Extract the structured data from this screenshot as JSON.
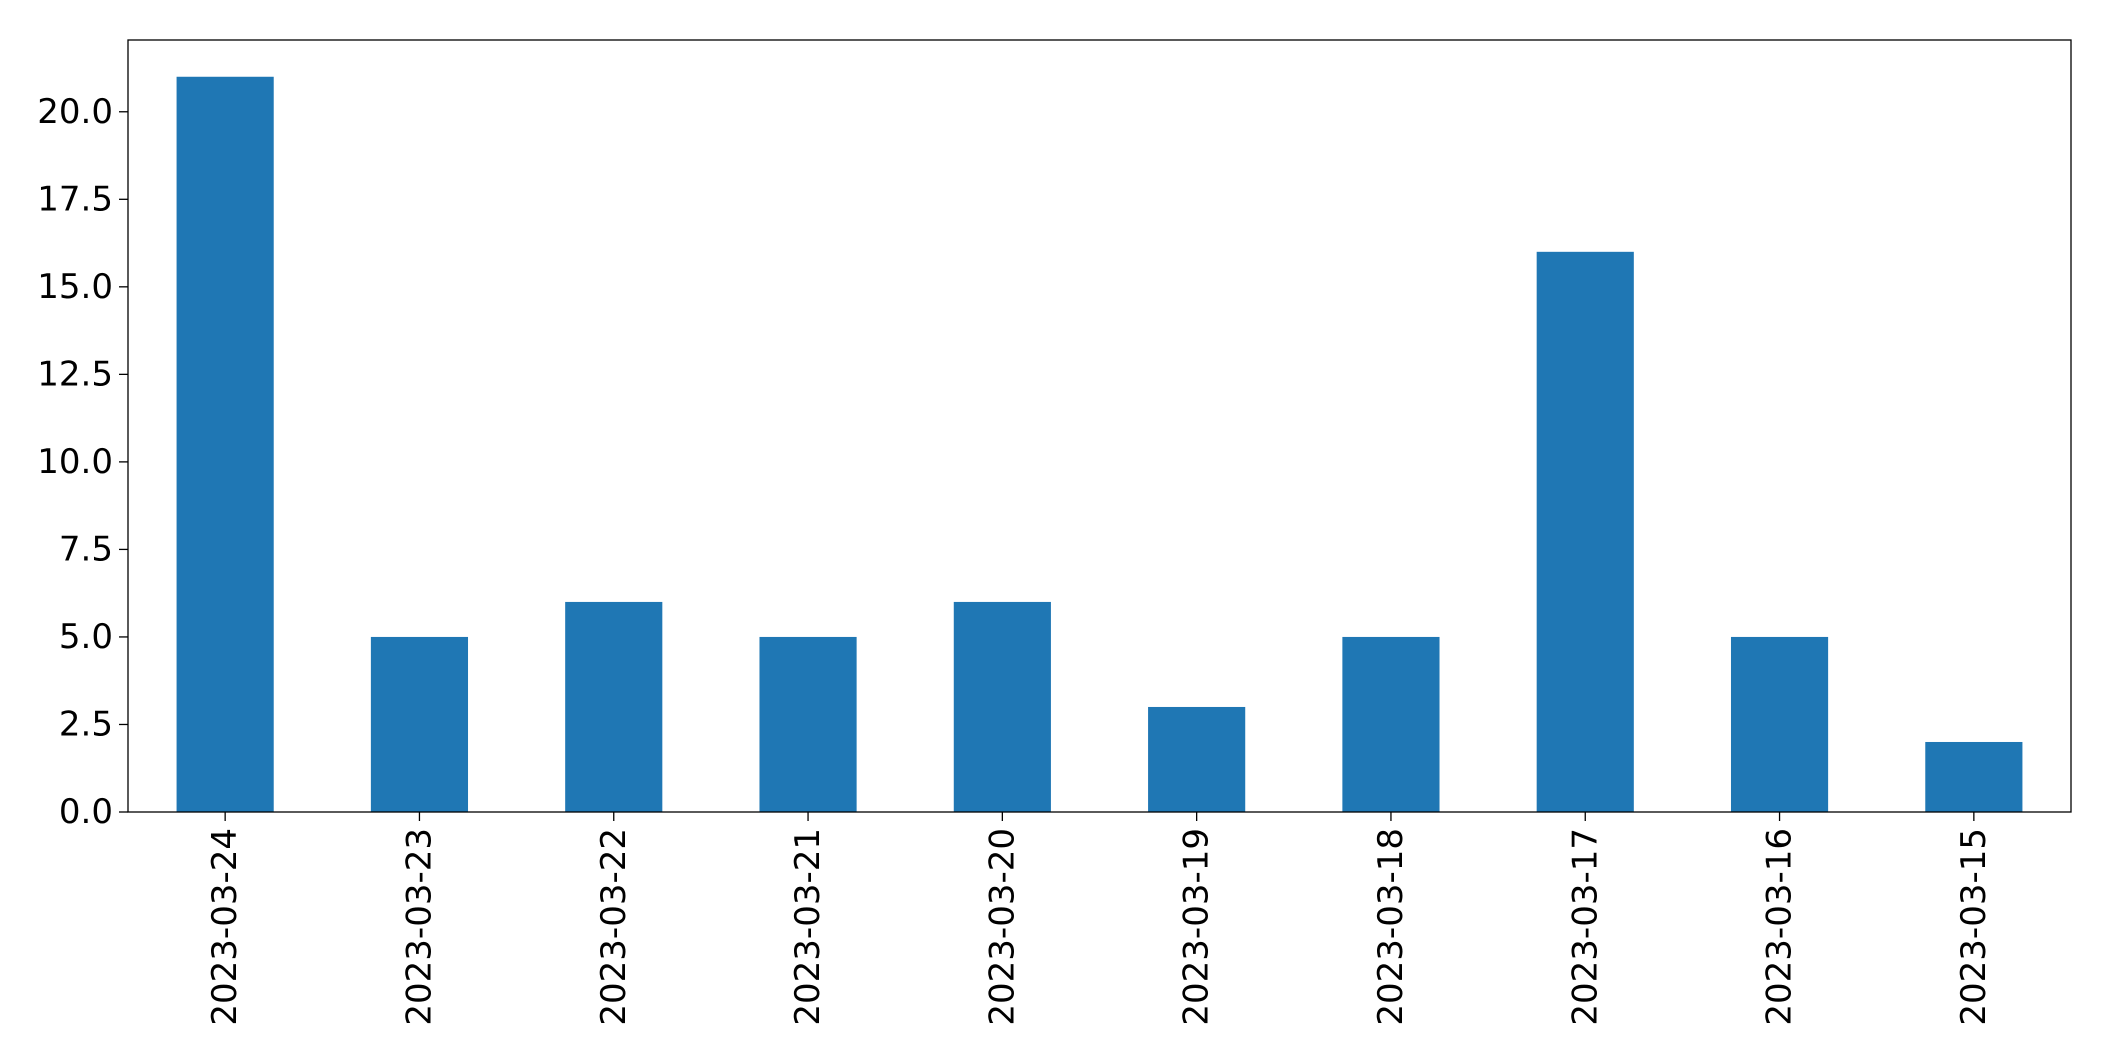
{
  "chart_data": {
    "type": "bar",
    "title": "",
    "xlabel": "",
    "ylabel": "",
    "categories": [
      "2023-03-24",
      "2023-03-23",
      "2023-03-22",
      "2023-03-21",
      "2023-03-20",
      "2023-03-19",
      "2023-03-18",
      "2023-03-17",
      "2023-03-16",
      "2023-03-15"
    ],
    "values": [
      21,
      5,
      6,
      5,
      6,
      3,
      5,
      16,
      5,
      2
    ],
    "ylim": [
      0,
      22.05
    ],
    "yticks": [
      0.0,
      2.5,
      5.0,
      7.5,
      10.0,
      12.5,
      15.0,
      17.5,
      20.0
    ],
    "ytick_labels": [
      "0.0",
      "2.5",
      "5.0",
      "7.5",
      "10.0",
      "12.5",
      "15.0",
      "17.5",
      "20.0"
    ],
    "xtick_rotation": "vertical",
    "grid": false,
    "legend": "none",
    "bar_color": "#1f77b4",
    "axis_color": "#000000"
  }
}
